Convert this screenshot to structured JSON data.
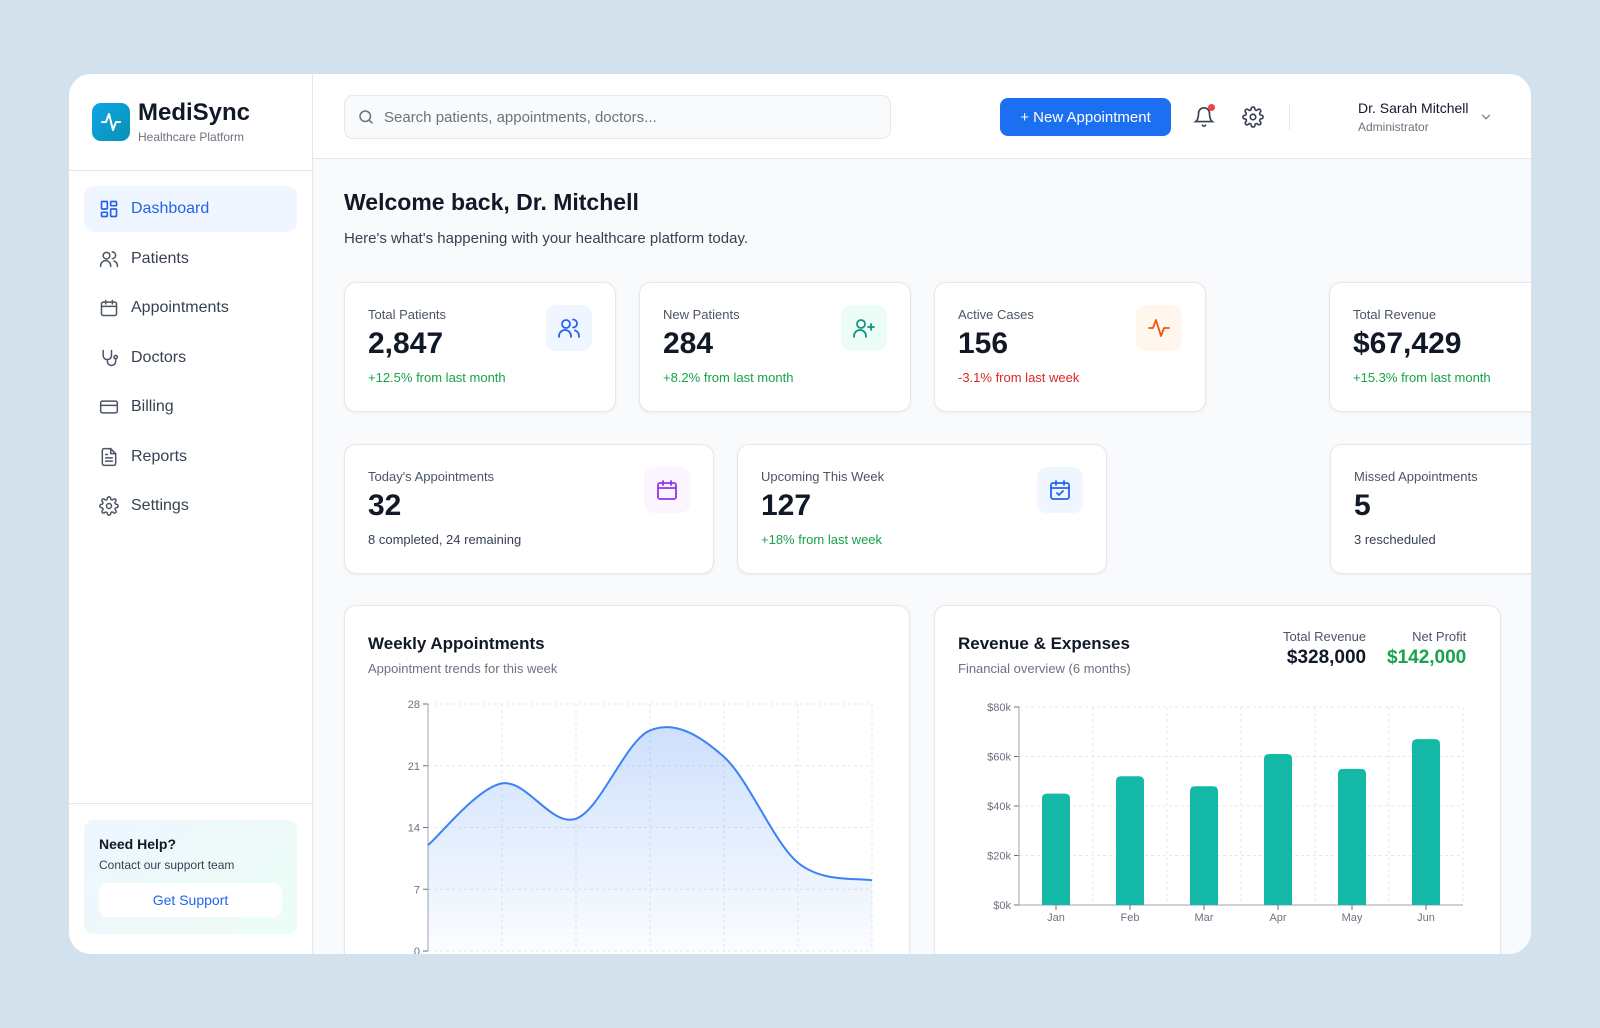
{
  "brand": {
    "name": "MediSync",
    "tagline": "Healthcare Platform"
  },
  "sidebar": {
    "items": [
      {
        "label": "Dashboard",
        "icon": "dashboard-icon",
        "active": true
      },
      {
        "label": "Patients",
        "icon": "users-icon"
      },
      {
        "label": "Appointments",
        "icon": "calendar-icon"
      },
      {
        "label": "Doctors",
        "icon": "stethoscope-icon"
      },
      {
        "label": "Billing",
        "icon": "credit-card-icon"
      },
      {
        "label": "Reports",
        "icon": "document-icon"
      },
      {
        "label": "Settings",
        "icon": "gear-icon"
      }
    ],
    "help": {
      "title": "Need Help?",
      "subtitle": "Contact our support team",
      "button": "Get Support"
    }
  },
  "header": {
    "search_placeholder": "Search patients, appointments, doctors...",
    "new_button": "+ New Appointment",
    "user": {
      "name": "Dr. Sarah Mitchell",
      "role": "Administrator"
    },
    "has_notification": true
  },
  "welcome": {
    "title": "Welcome back, Dr. Mitchell",
    "subtitle": "Here's what's happening with your healthcare platform today."
  },
  "stats": [
    {
      "label": "Total Patients",
      "value": "2,847",
      "sub": "+12.5% from last month",
      "trend": "up",
      "icon": "users-icon"
    },
    {
      "label": "New Patients",
      "value": "284",
      "sub": "+8.2% from last month",
      "trend": "up",
      "icon": "user-plus-icon"
    },
    {
      "label": "Active Cases",
      "value": "156",
      "sub": "-3.1% from last week",
      "trend": "down",
      "icon": "activity-icon"
    },
    {
      "label": "Total Revenue",
      "value": "$67,429",
      "sub": "+15.3% from last month",
      "trend": "up",
      "icon": "dollar-icon"
    }
  ],
  "appointments": [
    {
      "label": "Today's Appointments",
      "value": "32",
      "sub": "8 completed, 24 remaining",
      "icon": "calendar-icon"
    },
    {
      "label": "Upcoming This Week",
      "value": "127",
      "sub": "+18% from last week",
      "icon": "calendar-check-icon"
    },
    {
      "label": "Missed Appointments",
      "value": "5",
      "sub": "3 rescheduled",
      "icon": "calendar-x-icon"
    }
  ],
  "weekly": {
    "title": "Weekly Appointments",
    "subtitle": "Appointment trends for this week"
  },
  "revenue": {
    "title": "Revenue & Expenses",
    "subtitle": "Financial overview (6 months)",
    "total_label": "Total Revenue",
    "total_value": "$328,000",
    "profit_label": "Net Profit",
    "profit_value": "$142,000"
  },
  "chart_data": [
    {
      "type": "area",
      "title": "Weekly Appointments",
      "y_ticks": [
        "0",
        "7",
        "14",
        "21",
        "28"
      ],
      "ylim": [
        0,
        28
      ],
      "x": [
        0,
        1,
        2,
        3,
        4,
        5,
        6
      ],
      "values": [
        12,
        19,
        15,
        25,
        22,
        10,
        8
      ],
      "color": "#3b82f6",
      "grid": true
    },
    {
      "type": "bar",
      "title": "Revenue & Expenses",
      "categories": [
        "Jan",
        "Feb",
        "Mar",
        "Apr",
        "May",
        "Jun"
      ],
      "values": [
        45000,
        52000,
        48000,
        61000,
        55000,
        67000
      ],
      "y_ticks": [
        "$0k",
        "$20k",
        "$40k",
        "$60k",
        "$80k"
      ],
      "ylim": [
        0,
        80000
      ],
      "color": "#14b8a6",
      "grid": true
    }
  ]
}
